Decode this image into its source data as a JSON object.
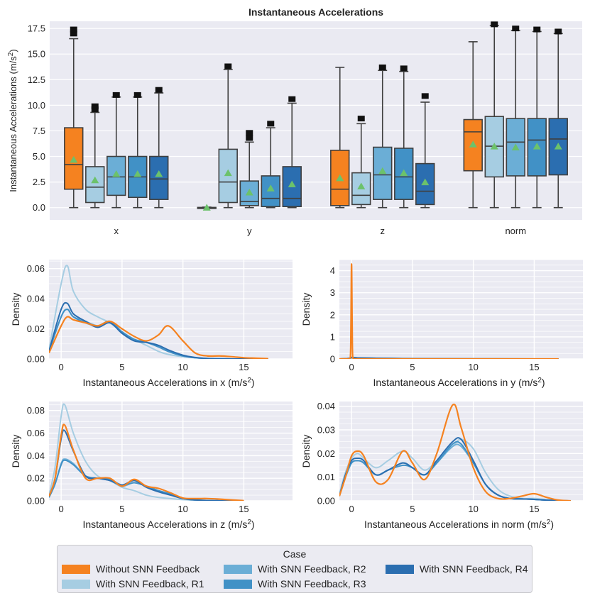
{
  "colors": {
    "cases": [
      "#f58220",
      "#a6cde2",
      "#6baed6",
      "#4191c6",
      "#2b6eb0"
    ],
    "background": "#eaeaf2",
    "grid": "#ffffff",
    "mean_marker": "#6cc26b"
  },
  "chart_data": [
    {
      "type": "box",
      "title": "Instantaneous Accelerations",
      "ylabel": "Instantaneous Accelerations (m/s²)",
      "ylim": [
        -1.2,
        18.2
      ],
      "yticks": [
        0.0,
        2.5,
        5.0,
        7.5,
        10.0,
        12.5,
        15.0,
        17.5
      ],
      "ytick_labels": [
        "0.0",
        "2.5",
        "5.0",
        "7.5",
        "10.0",
        "12.5",
        "15.0",
        "17.5"
      ],
      "categories": [
        "x",
        "y",
        "z",
        "norm"
      ],
      "series_names": [
        "Without SNN Feedback",
        "With SNN Feedback, R1",
        "With SNN Feedback, R2",
        "With SNN Feedback, R3",
        "With SNN Feedback, R4"
      ],
      "boxes": [
        [
          {
            "min": 0.0,
            "q1": 1.8,
            "median": 4.2,
            "q3": 7.8,
            "max": 16.5,
            "mean": 4.7,
            "outliers": [
              17.0,
              17.4
            ]
          },
          {
            "min": 0.0,
            "q1": 0.5,
            "median": 2.0,
            "q3": 4.0,
            "max": 9.3,
            "mean": 2.7,
            "outliers": [
              9.6,
              9.9
            ]
          },
          {
            "min": 0.0,
            "q1": 1.2,
            "median": 3.0,
            "q3": 5.0,
            "max": 10.8,
            "mean": 3.3,
            "outliers": [
              11.0
            ]
          },
          {
            "min": 0.0,
            "q1": 1.0,
            "median": 3.0,
            "q3": 5.0,
            "max": 10.8,
            "mean": 3.3,
            "outliers": [
              11.0
            ]
          },
          {
            "min": 0.0,
            "q1": 0.8,
            "median": 2.8,
            "q3": 5.0,
            "max": 11.2,
            "mean": 3.3,
            "outliers": [
              11.5
            ]
          }
        ],
        [
          {
            "min": 0.0,
            "q1": 0.0,
            "median": 0.0,
            "q3": 0.02,
            "max": 0.05,
            "mean": 0.02,
            "outliers": []
          },
          {
            "min": 0.0,
            "q1": 0.5,
            "median": 2.5,
            "q3": 5.7,
            "max": 13.5,
            "mean": 3.4,
            "outliers": [
              13.8
            ]
          },
          {
            "min": 0.0,
            "q1": 0.2,
            "median": 0.6,
            "q3": 2.6,
            "max": 6.4,
            "mean": 1.5,
            "outliers": [
              6.8,
              7.3
            ]
          },
          {
            "min": 0.0,
            "q1": 0.1,
            "median": 0.9,
            "q3": 3.1,
            "max": 7.8,
            "mean": 1.9,
            "outliers": [
              8.2
            ]
          },
          {
            "min": 0.0,
            "q1": 0.1,
            "median": 0.9,
            "q3": 4.0,
            "max": 10.2,
            "mean": 2.3,
            "outliers": [
              10.6
            ]
          }
        ],
        [
          {
            "min": 0.0,
            "q1": 0.2,
            "median": 1.8,
            "q3": 5.6,
            "max": 13.7,
            "mean": 2.9,
            "outliers": []
          },
          {
            "min": 0.0,
            "q1": 0.3,
            "median": 1.2,
            "q3": 3.4,
            "max": 8.2,
            "mean": 2.1,
            "outliers": [
              8.7
            ]
          },
          {
            "min": 0.0,
            "q1": 0.8,
            "median": 3.2,
            "q3": 5.9,
            "max": 13.4,
            "mean": 3.6,
            "outliers": [
              13.7
            ]
          },
          {
            "min": 0.0,
            "q1": 0.8,
            "median": 3.0,
            "q3": 5.8,
            "max": 13.3,
            "mean": 3.4,
            "outliers": [
              13.6
            ]
          },
          {
            "min": 0.0,
            "q1": 0.3,
            "median": 1.6,
            "q3": 4.3,
            "max": 10.3,
            "mean": 2.5,
            "outliers": [
              10.9
            ]
          }
        ],
        [
          {
            "min": 0.0,
            "q1": 3.6,
            "median": 7.4,
            "q3": 8.6,
            "max": 16.2,
            "mean": 6.2,
            "outliers": []
          },
          {
            "min": 0.0,
            "q1": 3.0,
            "median": 6.0,
            "q3": 8.9,
            "max": 17.8,
            "mean": 6.0,
            "outliers": [
              17.9
            ]
          },
          {
            "min": 0.0,
            "q1": 3.1,
            "median": 6.4,
            "q3": 8.7,
            "max": 17.3,
            "mean": 5.9,
            "outliers": [
              17.5
            ]
          },
          {
            "min": 0.0,
            "q1": 3.1,
            "median": 6.6,
            "q3": 8.7,
            "max": 17.2,
            "mean": 6.0,
            "outliers": [
              17.4
            ]
          },
          {
            "min": 0.0,
            "q1": 3.2,
            "median": 6.7,
            "q3": 8.7,
            "max": 17.0,
            "mean": 6.0,
            "outliers": [
              17.2
            ]
          }
        ]
      ]
    },
    {
      "type": "line",
      "subtype": "kde",
      "xlabel": "Instantaneous Accelerations in x (m/s²)",
      "ylabel": "Density",
      "xlim": [
        -1.0,
        19.0
      ],
      "ylim": [
        0,
        0.066
      ],
      "xticks": [
        0,
        5,
        10,
        15
      ],
      "yticks": [
        0.0,
        0.02,
        0.04,
        0.06
      ],
      "ytick_labels": [
        "0.00",
        "0.02",
        "0.04",
        "0.06"
      ],
      "minor_y_gridlines": true,
      "x": [
        -1,
        0,
        0.5,
        1,
        2,
        3,
        4,
        5,
        6,
        7,
        8,
        8.8,
        10,
        11,
        12,
        13,
        14,
        15,
        16,
        17
      ],
      "series": [
        {
          "name": "Without SNN Feedback",
          "values": [
            0.004,
            0.022,
            0.028,
            0.026,
            0.024,
            0.022,
            0.025,
            0.02,
            0.015,
            0.012,
            0.016,
            0.022,
            0.012,
            0.004,
            0.002,
            0.002,
            0.0015,
            0.0008,
            0.0005,
            0.0002
          ]
        },
        {
          "name": "With SNN Feedback, R1",
          "values": [
            0.006,
            0.05,
            0.062,
            0.045,
            0.033,
            0.028,
            0.024,
            0.018,
            0.013,
            0.009,
            0.005,
            0.003,
            0.0015,
            0.0008,
            0.0003,
            0.0001,
            0,
            0,
            0,
            0
          ]
        },
        {
          "name": "With SNN Feedback, R2",
          "values": [
            0.005,
            0.028,
            0.033,
            0.028,
            0.025,
            0.022,
            0.024,
            0.018,
            0.013,
            0.011,
            0.008,
            0.005,
            0.002,
            0.0008,
            0.0003,
            0.0001,
            0,
            0,
            0,
            0
          ]
        },
        {
          "name": "With SNN Feedback, R3",
          "values": [
            0.005,
            0.028,
            0.033,
            0.028,
            0.024,
            0.022,
            0.025,
            0.018,
            0.013,
            0.011,
            0.008,
            0.005,
            0.002,
            0.0008,
            0.0003,
            0.0001,
            0,
            0,
            0,
            0
          ]
        },
        {
          "name": "With SNN Feedback, R4",
          "values": [
            0.005,
            0.033,
            0.037,
            0.03,
            0.025,
            0.021,
            0.024,
            0.017,
            0.012,
            0.011,
            0.009,
            0.006,
            0.0025,
            0.001,
            0.0003,
            0.0001,
            0,
            0,
            0,
            0
          ]
        }
      ]
    },
    {
      "type": "line",
      "subtype": "kde",
      "xlabel": "Instantaneous Accelerations in y (m/s²)",
      "ylabel": "Density",
      "xlim": [
        -1.0,
        19.0
      ],
      "ylim": [
        0,
        4.5
      ],
      "xticks": [
        0,
        5,
        10,
        15
      ],
      "yticks": [
        0,
        1,
        2,
        3,
        4
      ],
      "ytick_labels": [
        "0",
        "1",
        "2",
        "3",
        "4"
      ],
      "minor_y_gridlines": true,
      "x": [
        -1,
        -0.3,
        -0.1,
        -0.05,
        0,
        0.05,
        0.1,
        0.3,
        1,
        5,
        10,
        15,
        17
      ],
      "series": [
        {
          "name": "Without SNN Feedback",
          "values": [
            0,
            0,
            0.05,
            1.5,
            4.3,
            1.5,
            0.05,
            0,
            0,
            0,
            0,
            0,
            0
          ]
        },
        {
          "name": "With SNN Feedback, R1",
          "values": [
            0,
            0.01,
            0.02,
            0.03,
            0.04,
            0.05,
            0.05,
            0.05,
            0.04,
            0.02,
            0.01,
            0.005,
            0
          ]
        },
        {
          "name": "With SNN Feedback, R2",
          "values": [
            0,
            0.02,
            0.04,
            0.05,
            0.07,
            0.07,
            0.07,
            0.06,
            0.04,
            0.01,
            0.003,
            0,
            0
          ]
        },
        {
          "name": "With SNN Feedback, R3",
          "values": [
            0,
            0.02,
            0.04,
            0.05,
            0.07,
            0.07,
            0.07,
            0.06,
            0.04,
            0.01,
            0.004,
            0,
            0
          ]
        },
        {
          "name": "With SNN Feedback, R4",
          "values": [
            0,
            0.02,
            0.04,
            0.05,
            0.06,
            0.06,
            0.06,
            0.05,
            0.04,
            0.012,
            0.005,
            0,
            0
          ]
        }
      ]
    },
    {
      "type": "line",
      "subtype": "kde",
      "xlabel": "Instantaneous Accelerations in z (m/s²)",
      "ylabel": "Density",
      "xlim": [
        -1.0,
        19.0
      ],
      "ylim": [
        0,
        0.088
      ],
      "xticks": [
        0,
        5,
        10,
        15
      ],
      "yticks": [
        0.0,
        0.02,
        0.04,
        0.06,
        0.08
      ],
      "ytick_labels": [
        "0.00",
        "0.02",
        "0.04",
        "0.06",
        "0.08"
      ],
      "minor_y_gridlines": true,
      "x": [
        -1,
        -0.5,
        0,
        0.3,
        1,
        2,
        3,
        4,
        5,
        6,
        7,
        8,
        9,
        10,
        11,
        12,
        13,
        14,
        15
      ],
      "series": [
        {
          "name": "Without SNN Feedback",
          "values": [
            0.004,
            0.02,
            0.058,
            0.067,
            0.045,
            0.02,
            0.02,
            0.02,
            0.013,
            0.019,
            0.013,
            0.011,
            0.007,
            0.0025,
            0.002,
            0.002,
            0.0015,
            0.0008,
            0.0002
          ]
        },
        {
          "name": "With SNN Feedback, R1",
          "values": [
            0.005,
            0.03,
            0.075,
            0.085,
            0.06,
            0.035,
            0.022,
            0.018,
            0.012,
            0.009,
            0.005,
            0.003,
            0.002,
            0.001,
            0.0005,
            0.0002,
            0,
            0,
            0
          ]
        },
        {
          "name": "With SNN Feedback, R2",
          "values": [
            0.003,
            0.015,
            0.033,
            0.037,
            0.033,
            0.022,
            0.02,
            0.018,
            0.013,
            0.016,
            0.013,
            0.009,
            0.006,
            0.002,
            0.0008,
            0.0003,
            0.0001,
            0,
            0
          ]
        },
        {
          "name": "With SNN Feedback, R3",
          "values": [
            0.003,
            0.015,
            0.032,
            0.036,
            0.032,
            0.022,
            0.02,
            0.019,
            0.014,
            0.016,
            0.013,
            0.009,
            0.006,
            0.002,
            0.0008,
            0.0003,
            0.0001,
            0,
            0
          ]
        },
        {
          "name": "With SNN Feedback, R4",
          "values": [
            0.004,
            0.02,
            0.055,
            0.062,
            0.044,
            0.022,
            0.02,
            0.018,
            0.014,
            0.018,
            0.012,
            0.008,
            0.005,
            0.002,
            0.0008,
            0.0003,
            0.0001,
            0,
            0
          ]
        }
      ]
    },
    {
      "type": "line",
      "subtype": "kde",
      "xlabel": "Instantaneous Accelerations in norm (m/s²)",
      "ylabel": "Density",
      "xlim": [
        -1.0,
        19.0
      ],
      "ylim": [
        0,
        0.042
      ],
      "xticks": [
        0,
        5,
        10,
        15
      ],
      "yticks": [
        0.0,
        0.01,
        0.02,
        0.03,
        0.04
      ],
      "ytick_labels": [
        "0.00",
        "0.01",
        "0.02",
        "0.03",
        "0.04"
      ],
      "minor_y_gridlines": true,
      "x": [
        -1,
        -0.5,
        0,
        0.5,
        1,
        2,
        3,
        4.2,
        5,
        6,
        7,
        8.3,
        9,
        10,
        11,
        12,
        13,
        14,
        15,
        16,
        17,
        18
      ],
      "series": [
        {
          "name": "Without SNN Feedback",
          "values": [
            0.002,
            0.01,
            0.019,
            0.021,
            0.019,
            0.008,
            0.009,
            0.021,
            0.016,
            0.009,
            0.02,
            0.0405,
            0.031,
            0.014,
            0.004,
            0.001,
            0.001,
            0.002,
            0.003,
            0.0015,
            0.0003,
            0
          ]
        },
        {
          "name": "With SNN Feedback, R1",
          "values": [
            0.003,
            0.012,
            0.018,
            0.02,
            0.018,
            0.014,
            0.017,
            0.021,
            0.018,
            0.013,
            0.017,
            0.023,
            0.026,
            0.022,
            0.012,
            0.005,
            0.002,
            0.001,
            0.001,
            0.0005,
            0.0001,
            0
          ]
        },
        {
          "name": "With SNN Feedback, R2",
          "values": [
            0.002,
            0.01,
            0.016,
            0.017,
            0.016,
            0.011,
            0.013,
            0.016,
            0.014,
            0.011,
            0.016,
            0.023,
            0.023,
            0.016,
            0.007,
            0.0025,
            0.001,
            0.0008,
            0.0006,
            0.0003,
            0.0001,
            0
          ]
        },
        {
          "name": "With SNN Feedback, R3",
          "values": [
            0.002,
            0.01,
            0.016,
            0.017,
            0.016,
            0.011,
            0.013,
            0.015,
            0.014,
            0.011,
            0.016,
            0.024,
            0.024,
            0.016,
            0.007,
            0.0025,
            0.001,
            0.0008,
            0.0006,
            0.0003,
            0.0001,
            0
          ]
        },
        {
          "name": "With SNN Feedback, R4",
          "values": [
            0.002,
            0.011,
            0.017,
            0.018,
            0.017,
            0.011,
            0.013,
            0.016,
            0.014,
            0.011,
            0.017,
            0.025,
            0.026,
            0.017,
            0.007,
            0.0025,
            0.001,
            0.0008,
            0.0006,
            0.0003,
            0.0001,
            0
          ]
        }
      ]
    }
  ],
  "legend": {
    "title": "Case",
    "placement": "bottom-center",
    "entries": [
      "Without SNN Feedback",
      "With SNN Feedback, R1",
      "With SNN Feedback, R2",
      "With SNN Feedback, R3",
      "With SNN Feedback, R4"
    ]
  }
}
